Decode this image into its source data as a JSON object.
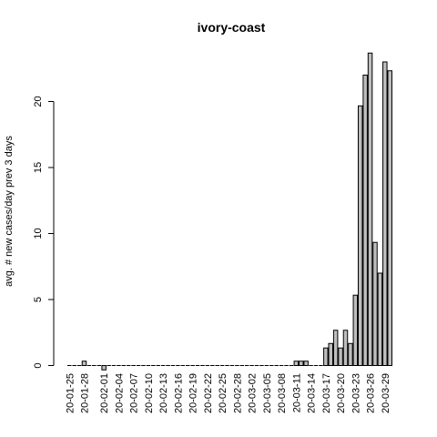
{
  "chart_data": {
    "type": "bar",
    "title": "ivory-coast",
    "xlabel": "",
    "ylabel": "avg. # new cases/day prev  3  days",
    "ylim": [
      0,
      24
    ],
    "yticks": [
      0,
      5,
      10,
      15,
      20
    ],
    "bar_color": "#bebebe",
    "categories": [
      "20-01-25",
      "20-01-26",
      "20-01-27",
      "20-01-28",
      "20-01-29",
      "20-01-30",
      "20-01-31",
      "20-02-01",
      "20-02-02",
      "20-02-03",
      "20-02-04",
      "20-02-05",
      "20-02-06",
      "20-02-07",
      "20-02-08",
      "20-02-09",
      "20-02-10",
      "20-02-11",
      "20-02-12",
      "20-02-13",
      "20-02-14",
      "20-02-15",
      "20-02-16",
      "20-02-17",
      "20-02-18",
      "20-02-19",
      "20-02-20",
      "20-02-21",
      "20-02-22",
      "20-02-23",
      "20-02-24",
      "20-02-25",
      "20-02-26",
      "20-02-27",
      "20-02-28",
      "20-02-29",
      "20-03-01",
      "20-03-02",
      "20-03-03",
      "20-03-04",
      "20-03-05",
      "20-03-06",
      "20-03-07",
      "20-03-08",
      "20-03-09",
      "20-03-10",
      "20-03-11",
      "20-03-12",
      "20-03-13",
      "20-03-14",
      "20-03-15",
      "20-03-16",
      "20-03-17",
      "20-03-18",
      "20-03-19",
      "20-03-20",
      "20-03-21",
      "20-03-22",
      "20-03-23",
      "20-03-24",
      "20-03-25",
      "20-03-26",
      "20-03-27",
      "20-03-28",
      "20-03-29",
      "20-03-30"
    ],
    "tick_labels": [
      "20-01-25",
      "20-01-28",
      "20-02-01",
      "20-02-04",
      "20-02-07",
      "20-02-10",
      "20-02-13",
      "20-02-16",
      "20-02-19",
      "20-02-22",
      "20-02-25",
      "20-02-28",
      "20-03-02",
      "20-03-05",
      "20-03-08",
      "20-03-11",
      "20-03-14",
      "20-03-17",
      "20-03-20",
      "20-03-23",
      "20-03-26",
      "20-03-29"
    ],
    "values": [
      0,
      0,
      0,
      0.33,
      0,
      0,
      0,
      -0.33,
      0,
      0,
      0,
      0,
      0,
      0,
      0,
      0,
      0,
      0,
      0,
      0,
      0,
      0,
      0,
      0,
      0,
      0,
      0,
      0,
      0,
      0,
      0,
      0,
      0,
      0,
      0,
      0,
      0,
      0,
      0,
      0,
      0,
      0,
      0,
      0,
      0,
      0,
      0.33,
      0.33,
      0.33,
      0,
      0,
      0,
      1.33,
      1.67,
      2.67,
      1.33,
      2.67,
      1.67,
      5.33,
      19.67,
      22.0,
      23.67,
      9.33,
      7.0,
      23.0,
      22.33
    ]
  }
}
